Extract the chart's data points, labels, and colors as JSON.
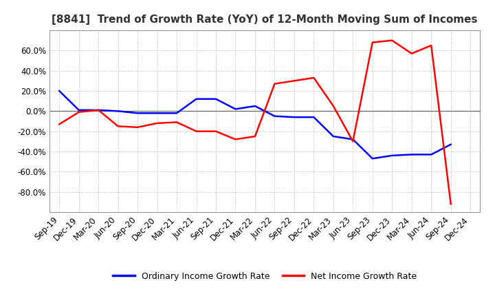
{
  "title": "[8841]  Trend of Growth Rate (YoY) of 12-Month Moving Sum of Incomes",
  "x_labels": [
    "Sep-19",
    "Dec-19",
    "Mar-20",
    "Jun-20",
    "Sep-20",
    "Dec-20",
    "Mar-21",
    "Jun-21",
    "Sep-21",
    "Dec-21",
    "Mar-22",
    "Jun-22",
    "Sep-22",
    "Dec-22",
    "Mar-23",
    "Jun-23",
    "Sep-23",
    "Dec-23",
    "Mar-24",
    "Jun-24",
    "Sep-24",
    "Dec-24"
  ],
  "ordinary_income": [
    20.0,
    1.0,
    1.0,
    0.0,
    -2.0,
    -2.0,
    -2.0,
    12.0,
    12.0,
    2.0,
    5.0,
    -5.0,
    -6.0,
    -6.0,
    -25.0,
    -28.0,
    -47.0,
    -44.0,
    -43.0,
    -43.0,
    -33.0,
    null
  ],
  "net_income": [
    -13.0,
    -1.0,
    1.0,
    -15.0,
    -16.0,
    -12.0,
    -11.0,
    -20.0,
    -20.0,
    -28.0,
    -25.0,
    27.0,
    30.0,
    33.0,
    5.0,
    -30.0,
    68.0,
    70.0,
    57.0,
    65.0,
    -92.0,
    null
  ],
  "ylim": [
    -100,
    80
  ],
  "yticks": [
    -80,
    -60,
    -40,
    -20,
    0,
    20,
    40,
    60
  ],
  "legend_labels": [
    "Ordinary Income Growth Rate",
    "Net Income Growth Rate"
  ],
  "line_colors": [
    "#0000FF",
    "#FF0000"
  ],
  "background_color": "#FFFFFF",
  "plot_bg_color": "#FFFFFF",
  "grid_color": "#AAAAAA",
  "title_fontsize": 11,
  "tick_fontsize": 8.5,
  "legend_fontsize": 9
}
